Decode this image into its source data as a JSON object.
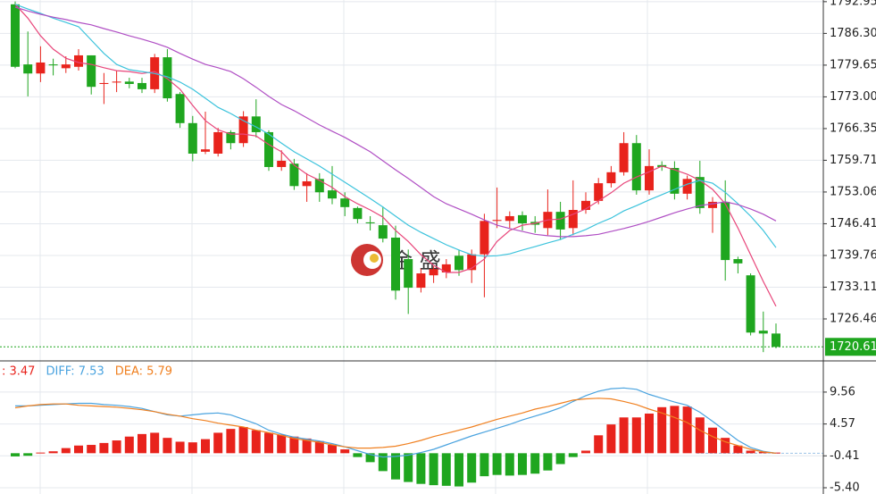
{
  "chart_data": [
    {
      "type": "candlestick",
      "watermark": "金 盛",
      "grid": true,
      "up_color": "#e8231c",
      "down_color": "#1fa61f",
      "ylim": [
        1717.85,
        1793.3
      ],
      "yticks": [
        1792.95,
        {
          "value": 1786.3,
          "label": "1786.30"
        },
        1779.65,
        {
          "value": 1773,
          "label": "1773.00"
        },
        1766.35,
        1759.71,
        1753.06,
        1746.41,
        1739.76,
        1733.11,
        1726.46
      ],
      "last_price": 1720.61,
      "last_price_color": "#1fa61f",
      "open": [
        1792.4,
        1779.8,
        1777.9,
        1779.8,
        1779.0,
        1779.3,
        1781.7,
        1775.7,
        1776.0,
        1776.2,
        1775.9,
        1774.6,
        1781.3,
        1773.6,
        1767.5,
        1761.5,
        1761.1,
        1765.6,
        1763.3,
        1768.9,
        1765.6,
        1758.3,
        1759.0,
        1754.3,
        1755.8,
        1753.4,
        1751.7,
        1749.7,
        1746.7,
        1746.1,
        1743.5,
        1739.0,
        1733.0,
        1735.6,
        1736.2,
        1739.7,
        1736.7,
        1740.0,
        1747.0,
        1747.0,
        1748.2,
        1746.8,
        1745.5,
        1748.9,
        1745.5,
        1749.3,
        1751.2,
        1754.9,
        1757.2,
        1763.3,
        1753.4,
        1758.7,
        1758.1,
        1752.7,
        1756.2,
        1749.7,
        1751.0,
        1739.0,
        1735.6,
        1724.0,
        1723.4
      ],
      "high": [
        1793.0,
        1786.7,
        1783.6,
        1781.0,
        1781.5,
        1783.0,
        1781.7,
        1778.0,
        1778.5,
        1777.0,
        1777.0,
        1782.0,
        1783.0,
        1774.0,
        1769.0,
        1769.9,
        1766.5,
        1766.0,
        1770.0,
        1772.5,
        1766.0,
        1761.8,
        1760.0,
        1757.0,
        1757.0,
        1758.5,
        1753.0,
        1750.0,
        1748.0,
        1750.0,
        1746.0,
        1741.0,
        1737.0,
        1737.5,
        1739.0,
        1741.0,
        1741.0,
        1748.5,
        1754.0,
        1749.0,
        1749.0,
        1748.0,
        1753.6,
        1751.0,
        1755.5,
        1753.0,
        1756.0,
        1758.5,
        1765.6,
        1765.0,
        1762.0,
        1759.5,
        1759.5,
        1756.5,
        1759.6,
        1752.0,
        1755.5,
        1739.5,
        1736.0,
        1728.0,
        1725.5
      ],
      "low": [
        1779.0,
        1773.1,
        1776.1,
        1777.5,
        1778.0,
        1778.5,
        1773.5,
        1771.5,
        1774.0,
        1774.8,
        1773.8,
        1773.8,
        1772.0,
        1766.5,
        1759.5,
        1761.0,
        1760.5,
        1762.0,
        1762.5,
        1764.5,
        1757.5,
        1757.5,
        1753.5,
        1751.0,
        1751.0,
        1750.5,
        1748.0,
        1746.5,
        1745.0,
        1742.5,
        1730.5,
        1727.5,
        1732.0,
        1734.0,
        1735.0,
        1735.5,
        1734.0,
        1731.0,
        1745.5,
        1745.5,
        1745.0,
        1744.5,
        1744.0,
        1743.0,
        1744.0,
        1748.5,
        1750.5,
        1754.0,
        1756.5,
        1752.5,
        1752.5,
        1757.5,
        1751.5,
        1751.5,
        1748.5,
        1744.5,
        1734.5,
        1736.0,
        1723.0,
        1719.5,
        1720.3
      ],
      "close": [
        1779.3,
        1777.9,
        1780.2,
        1779.6,
        1779.8,
        1781.7,
        1775.1,
        1775.9,
        1776.2,
        1775.7,
        1774.6,
        1781.3,
        1772.7,
        1767.5,
        1761.1,
        1762.0,
        1765.6,
        1763.3,
        1768.9,
        1765.6,
        1758.3,
        1759.6,
        1754.3,
        1755.3,
        1753.0,
        1751.7,
        1749.9,
        1747.4,
        1746.5,
        1743.3,
        1732.4,
        1733.0,
        1736.0,
        1736.9,
        1737.9,
        1736.7,
        1740.0,
        1747.0,
        1747.2,
        1748.0,
        1746.5,
        1746.2,
        1748.9,
        1745.2,
        1749.3,
        1751.2,
        1754.9,
        1757.2,
        1763.3,
        1753.4,
        1758.5,
        1758.3,
        1752.7,
        1755.8,
        1749.7,
        1751.0,
        1738.8,
        1738.1,
        1723.6,
        1723.4,
        1720.6
      ],
      "lines": [
        {
          "color": "#e8457a",
          "values": [
            1792.4,
            1789.5,
            1785.8,
            1783.0,
            1781.1,
            1780.2,
            1779.8,
            1779.1,
            1778.5,
            1778.3,
            1777.9,
            1778.3,
            1776.8,
            1774.6,
            1771.2,
            1768.0,
            1766.1,
            1765.2,
            1765.2,
            1764.8,
            1763.0,
            1761.5,
            1758.7,
            1756.8,
            1755.5,
            1754.0,
            1752.1,
            1750.6,
            1749.3,
            1747.8,
            1745.0,
            1742.7,
            1739.9,
            1737.7,
            1736.2,
            1736.2,
            1737.1,
            1739.0,
            1742.7,
            1745.0,
            1746.1,
            1746.5,
            1747.2,
            1747.4,
            1748.4,
            1749.5,
            1751.2,
            1752.9,
            1754.9,
            1756.2,
            1757.3,
            1758.5,
            1757.7,
            1756.8,
            1755.5,
            1753.6,
            1750.6,
            1745.5,
            1739.9,
            1734.3,
            1729.1
          ]
        },
        {
          "color": "#3cc3dc",
          "values": [
            1792.4,
            1791.4,
            1790.5,
            1789.5,
            1788.6,
            1787.7,
            1784.9,
            1782.1,
            1779.8,
            1778.7,
            1778.3,
            1777.9,
            1777.2,
            1776.1,
            1774.6,
            1772.7,
            1770.8,
            1769.5,
            1768.0,
            1766.7,
            1765.2,
            1763.3,
            1761.5,
            1760.0,
            1758.5,
            1756.8,
            1755.1,
            1753.4,
            1751.7,
            1749.9,
            1748.0,
            1746.1,
            1744.6,
            1743.3,
            1742.0,
            1740.9,
            1739.9,
            1739.6,
            1739.7,
            1740.1,
            1740.9,
            1741.6,
            1742.4,
            1743.1,
            1744.2,
            1745.2,
            1746.5,
            1747.6,
            1749.1,
            1750.2,
            1751.4,
            1752.5,
            1753.6,
            1754.7,
            1755.5,
            1754.9,
            1753.0,
            1750.6,
            1748.0,
            1745.0,
            1741.4
          ]
        },
        {
          "color": "#b04fc4",
          "values": [
            1791.8,
            1791.0,
            1790.3,
            1789.7,
            1789.2,
            1788.6,
            1788.1,
            1787.3,
            1786.6,
            1785.8,
            1785.1,
            1784.3,
            1783.4,
            1782.1,
            1780.9,
            1779.8,
            1779.1,
            1778.3,
            1776.8,
            1775.0,
            1773.1,
            1771.4,
            1770.1,
            1768.6,
            1767.1,
            1765.8,
            1764.5,
            1763.0,
            1761.5,
            1759.6,
            1757.7,
            1755.9,
            1754.0,
            1752.1,
            1750.6,
            1749.5,
            1748.4,
            1747.2,
            1746.1,
            1745.4,
            1744.8,
            1744.2,
            1743.9,
            1743.7,
            1743.7,
            1743.9,
            1744.2,
            1744.8,
            1745.4,
            1746.1,
            1746.9,
            1747.8,
            1748.7,
            1749.5,
            1750.2,
            1750.6,
            1751.0,
            1750.4,
            1749.5,
            1748.4,
            1747.0
          ]
        }
      ]
    },
    {
      "type": "macd",
      "grid": true,
      "up_color": "#e8231c",
      "down_color": "#1fa61f",
      "ylim": [
        -6.38,
        14.3
      ],
      "yticks": [
        9.56,
        4.57,
        -0.41,
        {
          "value": -5.4,
          "label": "-5.40"
        }
      ],
      "series": [
        {
          "name": ": 3.47",
          "color": "#e8231c",
          "values": [
            -0.5,
            -0.4,
            0.1,
            0.3,
            0.8,
            1.2,
            1.3,
            1.6,
            2.0,
            2.6,
            3.0,
            3.2,
            2.4,
            1.8,
            1.7,
            2.2,
            3.2,
            3.8,
            4.1,
            3.6,
            3.2,
            2.9,
            2.6,
            2.3,
            1.9,
            1.3,
            0.6,
            -0.6,
            -1.4,
            -2.8,
            -4.1,
            -4.5,
            -4.8,
            -5.0,
            -5.1,
            -5.2,
            -4.6,
            -3.6,
            -3.4,
            -3.5,
            -3.4,
            -3.2,
            -2.7,
            -1.7,
            -0.6,
            0.4,
            2.8,
            4.5,
            5.6,
            5.6,
            6.2,
            7.2,
            7.4,
            7.3,
            5.6,
            4.0,
            2.4,
            1.2,
            0.4,
            0.2,
            0.1
          ]
        },
        {
          "name": "DIFF: 7.53",
          "color": "#4aa3df",
          "values": [
            7.4,
            7.4,
            7.5,
            7.6,
            7.7,
            7.8,
            7.8,
            7.6,
            7.5,
            7.3,
            7.0,
            6.5,
            6.0,
            5.8,
            6.0,
            6.2,
            6.3,
            6.0,
            5.3,
            4.6,
            3.6,
            3.0,
            2.5,
            2.2,
            1.9,
            1.5,
            1.0,
            0.4,
            -0.2,
            -0.6,
            -0.5,
            -0.3,
            0.1,
            0.6,
            1.3,
            2.0,
            2.7,
            3.3,
            3.9,
            4.5,
            5.2,
            5.8,
            6.4,
            7.1,
            8.1,
            9.0,
            9.7,
            10.1,
            10.2,
            10.0,
            9.2,
            8.6,
            8.0,
            7.5,
            6.4,
            5.0,
            3.5,
            2.0,
            0.9,
            0.3,
            0.0
          ]
        },
        {
          "name": "DEA: 5.79",
          "color": "#f08020",
          "values": [
            7.1,
            7.4,
            7.6,
            7.7,
            7.7,
            7.5,
            7.4,
            7.3,
            7.2,
            7.0,
            6.8,
            6.5,
            6.1,
            5.8,
            5.4,
            5.1,
            4.7,
            4.4,
            4.1,
            3.6,
            3.2,
            2.8,
            2.3,
            2.0,
            1.7,
            1.3,
            1.0,
            0.8,
            0.8,
            0.9,
            1.1,
            1.5,
            2.0,
            2.6,
            3.1,
            3.6,
            4.1,
            4.7,
            5.3,
            5.8,
            6.3,
            6.9,
            7.3,
            7.8,
            8.3,
            8.5,
            8.6,
            8.5,
            8.1,
            7.6,
            6.9,
            6.3,
            5.6,
            4.8,
            3.6,
            2.6,
            1.8,
            1.2,
            0.6,
            0.2,
            0.0
          ]
        }
      ]
    }
  ]
}
